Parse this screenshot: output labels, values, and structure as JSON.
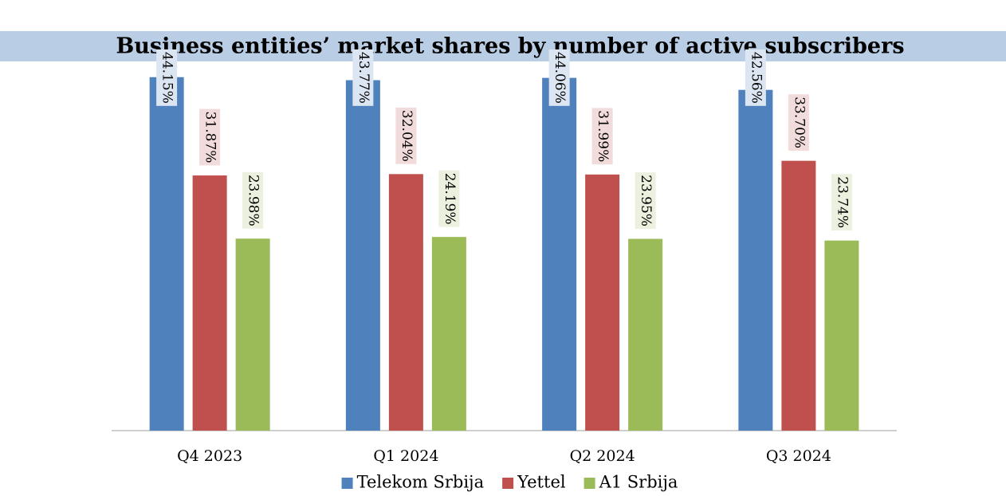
{
  "chart_data": {
    "type": "bar",
    "title": "Business entities’ market shares by number of active subscribers",
    "categories": [
      "Q4 2023",
      "Q1 2024",
      "Q2 2024",
      "Q3 2024"
    ],
    "series": [
      {
        "name": "Telekom Srbija",
        "color": "#4f81bd",
        "label_color": "#dce6f2",
        "values": [
          44.15,
          43.77,
          44.06,
          42.56
        ],
        "value_labels": [
          "44.15%",
          "43.77%",
          "44.06%",
          "42.56%"
        ]
      },
      {
        "name": "Yettel",
        "color": "#c0504d",
        "label_color": "#f2dcdb",
        "values": [
          31.87,
          32.04,
          31.99,
          33.7
        ],
        "value_labels": [
          "31.87%",
          "32.04%",
          "31.99%",
          "33.70%"
        ]
      },
      {
        "name": "A1 Srbija",
        "color": "#9bbb59",
        "label_color": "#ebf1de",
        "values": [
          23.98,
          24.19,
          23.95,
          23.74
        ],
        "value_labels": [
          "23.98%",
          "24.19%",
          "23.95%",
          "23.74%"
        ]
      }
    ],
    "ylim": [
      0,
      50
    ],
    "legend": "bottom"
  }
}
